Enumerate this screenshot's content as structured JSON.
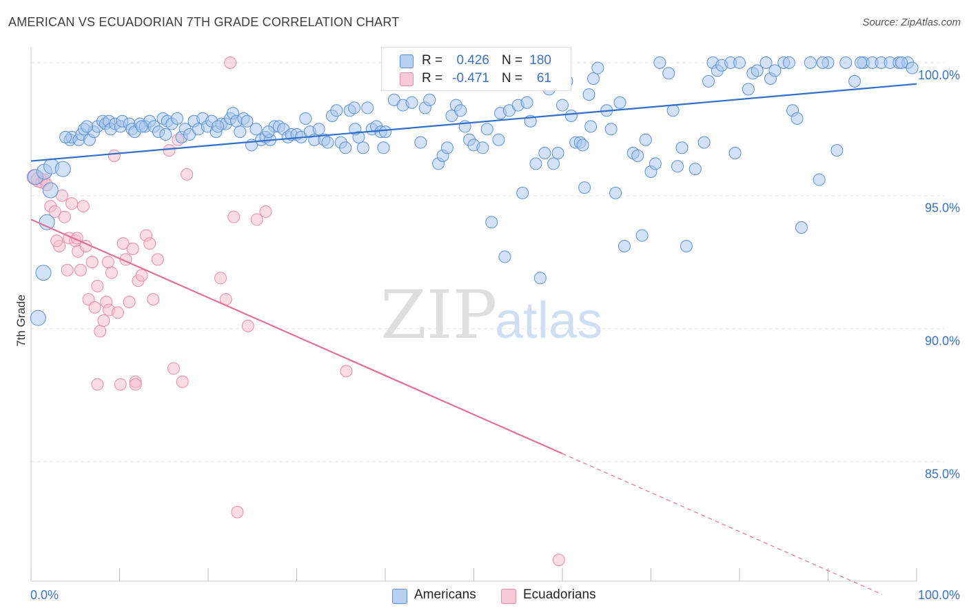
{
  "title": "AMERICAN VS ECUADORIAN 7TH GRADE CORRELATION CHART",
  "source": "Source: ZipAtlas.com",
  "watermark": {
    "zip": "ZIP",
    "atlas": "atlas"
  },
  "legend": {
    "rows": [
      {
        "r_label": "R =",
        "r_value": "0.426",
        "n_label": "N =",
        "n_value": "180"
      },
      {
        "r_label": "R =",
        "r_value": "-0.471",
        "n_label": "N =",
        "n_value": "61"
      }
    ]
  },
  "bottom_legend": {
    "americans": "Americans",
    "ecuadorians": "Ecuadorians"
  },
  "colors": {
    "americans_fill": "#a8c6ee",
    "americans_stroke": "#5a8fd6",
    "americans_line": "#2f6fce",
    "ecuadorians_fill": "#f6bfd0",
    "ecuadorians_stroke": "#e98aa8",
    "ecuadorians_line": "#e0709a",
    "tick_label": "#3b73c4",
    "grid": "#e6e6e6"
  },
  "chart_data": {
    "type": "scatter",
    "title": "AMERICAN VS ECUADORIAN 7TH GRADE CORRELATION CHART",
    "xlabel": "",
    "ylabel": "7th Grade",
    "xlim": [
      0,
      100
    ],
    "ylim": [
      80.5,
      100.8
    ],
    "y_ticks": [
      {
        "value": 100,
        "label": "100.0%"
      },
      {
        "value": 95,
        "label": "95.0%"
      },
      {
        "value": 90,
        "label": "90.0%"
      },
      {
        "value": 85,
        "label": "85.0%"
      }
    ],
    "x_tick_labels": {
      "min": "0.0%",
      "max": "100.0%"
    },
    "x_minor_ticks": [
      0,
      10,
      20,
      30,
      40,
      50,
      60,
      70,
      80,
      90,
      100
    ],
    "grid": true,
    "series": [
      {
        "name": "Americans",
        "r": 0.426,
        "n": 180,
        "trend": {
          "x0": 0,
          "y0": 96.3,
          "x1": 100,
          "y1": 99.2
        },
        "points": [
          [
            0.5,
            95.7
          ],
          [
            1.5,
            95.9
          ],
          [
            2.3,
            96.1
          ],
          [
            3.6,
            96.0
          ],
          [
            1.8,
            94.0
          ],
          [
            1.4,
            92.1
          ],
          [
            0.8,
            90.4
          ],
          [
            2.2,
            95.2
          ],
          [
            4.4,
            97.1
          ],
          [
            4.6,
            97.2
          ],
          [
            5.4,
            97.1
          ],
          [
            5.7,
            97.3
          ],
          [
            6.0,
            97.5
          ],
          [
            6.6,
            97.1
          ],
          [
            7.1,
            97.4
          ],
          [
            7.5,
            97.6
          ],
          [
            8.1,
            97.8
          ],
          [
            8.4,
            97.7
          ],
          [
            8.8,
            97.8
          ],
          [
            9.0,
            97.5
          ],
          [
            9.5,
            97.7
          ],
          [
            10.1,
            97.6
          ],
          [
            10.3,
            97.8
          ],
          [
            11.1,
            97.7
          ],
          [
            11.4,
            97.5
          ],
          [
            11.7,
            97.4
          ],
          [
            12.3,
            97.7
          ],
          [
            12.9,
            97.6
          ],
          [
            13.4,
            97.8
          ],
          [
            13.9,
            97.6
          ],
          [
            14.4,
            97.4
          ],
          [
            14.9,
            97.9
          ],
          [
            15.4,
            97.8
          ],
          [
            15.9,
            97.7
          ],
          [
            16.5,
            97.9
          ],
          [
            17.0,
            97.2
          ],
          [
            17.4,
            97.5
          ],
          [
            17.9,
            97.3
          ],
          [
            18.4,
            97.8
          ],
          [
            18.9,
            97.5
          ],
          [
            19.4,
            97.9
          ],
          [
            19.9,
            97.6
          ],
          [
            20.4,
            97.8
          ],
          [
            20.9,
            97.4
          ],
          [
            21.5,
            97.7
          ],
          [
            22.0,
            97.7
          ],
          [
            22.5,
            97.9
          ],
          [
            22.8,
            98.1
          ],
          [
            23.2,
            97.8
          ],
          [
            23.6,
            97.4
          ],
          [
            24.0,
            97.9
          ],
          [
            24.4,
            97.8
          ],
          [
            24.9,
            96.9
          ],
          [
            25.4,
            97.5
          ],
          [
            26.0,
            97.1
          ],
          [
            26.5,
            97.2
          ],
          [
            27.0,
            97.1
          ],
          [
            27.5,
            97.6
          ],
          [
            28.0,
            97.6
          ],
          [
            28.5,
            97.5
          ],
          [
            29.0,
            97.2
          ],
          [
            29.4,
            97.3
          ],
          [
            30.0,
            97.3
          ],
          [
            30.5,
            97.2
          ],
          [
            31.0,
            97.9
          ],
          [
            31.5,
            97.4
          ],
          [
            32.0,
            97.1
          ],
          [
            32.5,
            97.5
          ],
          [
            33.1,
            97.1
          ],
          [
            33.5,
            97.0
          ],
          [
            34.0,
            98.0
          ],
          [
            34.5,
            98.2
          ],
          [
            35.0,
            97.0
          ],
          [
            35.5,
            96.8
          ],
          [
            36.0,
            98.2
          ],
          [
            36.5,
            98.3
          ],
          [
            37.0,
            97.2
          ],
          [
            37.5,
            96.8
          ],
          [
            38.0,
            98.3
          ],
          [
            38.5,
            97.5
          ],
          [
            39.0,
            97.6
          ],
          [
            39.5,
            97.4
          ],
          [
            40.0,
            97.4
          ],
          [
            41.0,
            98.6
          ],
          [
            42.0,
            98.4
          ],
          [
            43.0,
            98.5
          ],
          [
            44.0,
            97.0
          ],
          [
            44.5,
            98.3
          ],
          [
            45.0,
            98.6
          ],
          [
            46.0,
            96.2
          ],
          [
            46.5,
            96.5
          ],
          [
            47.0,
            96.8
          ],
          [
            47.5,
            98.0
          ],
          [
            48.0,
            98.4
          ],
          [
            48.5,
            98.2
          ],
          [
            49.0,
            97.6
          ],
          [
            49.5,
            97.1
          ],
          [
            50.0,
            96.9
          ],
          [
            51.0,
            96.8
          ],
          [
            51.5,
            97.5
          ],
          [
            52.0,
            94.0
          ],
          [
            53.0,
            98.1
          ],
          [
            53.5,
            92.7
          ],
          [
            54.0,
            98.2
          ],
          [
            55.0,
            98.4
          ],
          [
            55.5,
            95.1
          ],
          [
            56.0,
            98.5
          ],
          [
            57.0,
            96.2
          ],
          [
            57.5,
            91.9
          ],
          [
            58.0,
            96.6
          ],
          [
            58.5,
            99.0
          ],
          [
            59.0,
            96.2
          ],
          [
            59.5,
            96.6
          ],
          [
            60.0,
            98.4
          ],
          [
            60.5,
            99.3
          ],
          [
            61.0,
            98.0
          ],
          [
            61.5,
            97.0
          ],
          [
            62.0,
            97.0
          ],
          [
            62.5,
            95.3
          ],
          [
            63.0,
            98.8
          ],
          [
            63.5,
            99.4
          ],
          [
            64.0,
            99.8
          ],
          [
            65.0,
            98.2
          ],
          [
            65.5,
            97.5
          ],
          [
            66.0,
            95.1
          ],
          [
            66.5,
            98.5
          ],
          [
            67.0,
            93.1
          ],
          [
            68.0,
            96.6
          ],
          [
            68.5,
            96.5
          ],
          [
            69.0,
            93.5
          ],
          [
            70.0,
            95.9
          ],
          [
            70.5,
            96.2
          ],
          [
            71.0,
            100.0
          ],
          [
            72.0,
            99.6
          ],
          [
            72.5,
            98.2
          ],
          [
            73.0,
            96.1
          ],
          [
            73.5,
            96.8
          ],
          [
            74.0,
            93.1
          ],
          [
            75.0,
            96.0
          ],
          [
            76.0,
            97.0
          ],
          [
            76.5,
            99.3
          ],
          [
            77.0,
            100.0
          ],
          [
            77.5,
            99.7
          ],
          [
            78.0,
            99.9
          ],
          [
            79.0,
            100.0
          ],
          [
            79.5,
            96.6
          ],
          [
            80.0,
            100.0
          ],
          [
            81.0,
            99.0
          ],
          [
            81.5,
            99.6
          ],
          [
            82.0,
            99.7
          ],
          [
            83.0,
            100.0
          ],
          [
            83.5,
            99.4
          ],
          [
            84.0,
            99.7
          ],
          [
            85.0,
            100.0
          ],
          [
            86.0,
            98.2
          ],
          [
            86.5,
            97.9
          ],
          [
            87.0,
            93.8
          ],
          [
            88.0,
            100.0
          ],
          [
            89.0,
            95.6
          ],
          [
            90.0,
            100.0
          ],
          [
            91.0,
            96.7
          ],
          [
            92.0,
            100.0
          ],
          [
            93.0,
            99.3
          ],
          [
            94.0,
            100.0
          ],
          [
            95.0,
            100.0
          ],
          [
            96.0,
            100.0
          ],
          [
            97.0,
            100.0
          ],
          [
            98.0,
            100.0
          ],
          [
            99.0,
            100.0
          ],
          [
            99.5,
            99.8
          ],
          [
            56.4,
            97.8
          ],
          [
            45.4,
            99.6
          ],
          [
            36.6,
            97.5
          ],
          [
            26.8,
            97.4
          ],
          [
            6.3,
            97.6
          ],
          [
            12.5,
            97.6
          ],
          [
            3.9,
            97.2
          ],
          [
            15.2,
            97.3
          ],
          [
            21.1,
            97.6
          ],
          [
            39.8,
            96.8
          ],
          [
            52.8,
            97.1
          ],
          [
            62.3,
            96.9
          ],
          [
            63.2,
            97.6
          ],
          [
            69.4,
            97.1
          ],
          [
            85.6,
            100.0
          ],
          [
            89.4,
            100.0
          ],
          [
            93.7,
            100.0
          ],
          [
            98.3,
            100.0
          ]
        ]
      },
      {
        "name": "Ecuadorians",
        "r": -0.471,
        "n": 61,
        "trend": {
          "x0": 0,
          "y0": 94.1,
          "x1": 60,
          "y1": 85.3,
          "dash_to_x": 100
        },
        "points": [
          [
            0.4,
            95.7
          ],
          [
            0.9,
            95.6
          ],
          [
            1.2,
            95.5
          ],
          [
            1.5,
            95.6
          ],
          [
            1.8,
            95.4
          ],
          [
            2.2,
            94.6
          ],
          [
            2.7,
            94.4
          ],
          [
            3.2,
            93.1
          ],
          [
            3.5,
            95.0
          ],
          [
            3.8,
            94.2
          ],
          [
            4.1,
            92.2
          ],
          [
            4.3,
            93.4
          ],
          [
            4.6,
            94.7
          ],
          [
            5.0,
            93.3
          ],
          [
            5.3,
            92.9
          ],
          [
            5.6,
            92.2
          ],
          [
            5.9,
            94.6
          ],
          [
            6.2,
            93.1
          ],
          [
            6.5,
            91.1
          ],
          [
            6.9,
            92.5
          ],
          [
            7.2,
            90.8
          ],
          [
            7.5,
            91.6
          ],
          [
            7.8,
            89.9
          ],
          [
            8.2,
            90.3
          ],
          [
            8.5,
            91.0
          ],
          [
            8.8,
            90.7
          ],
          [
            9.1,
            92.1
          ],
          [
            9.4,
            96.5
          ],
          [
            9.8,
            90.6
          ],
          [
            10.4,
            93.2
          ],
          [
            10.7,
            92.6
          ],
          [
            11.1,
            91.0
          ],
          [
            11.5,
            93.0
          ],
          [
            11.8,
            88.0
          ],
          [
            12.1,
            91.8
          ],
          [
            12.5,
            92.0
          ],
          [
            13.0,
            93.5
          ],
          [
            13.4,
            93.2
          ],
          [
            13.8,
            91.1
          ],
          [
            14.3,
            92.6
          ],
          [
            15.6,
            96.7
          ],
          [
            16.1,
            88.5
          ],
          [
            16.6,
            97.1
          ],
          [
            17.1,
            88.0
          ],
          [
            17.6,
            95.8
          ],
          [
            21.4,
            91.9
          ],
          [
            22.0,
            91.1
          ],
          [
            22.5,
            100.0
          ],
          [
            22.9,
            94.2
          ],
          [
            23.3,
            83.1
          ],
          [
            24.5,
            90.1
          ],
          [
            25.5,
            94.1
          ],
          [
            26.5,
            94.4
          ],
          [
            35.6,
            88.4
          ],
          [
            59.6,
            81.3
          ],
          [
            7.5,
            87.9
          ],
          [
            10.1,
            87.9
          ],
          [
            11.8,
            87.9
          ],
          [
            2.9,
            93.3
          ],
          [
            5.2,
            93.4
          ],
          [
            8.7,
            92.5
          ]
        ]
      }
    ]
  }
}
